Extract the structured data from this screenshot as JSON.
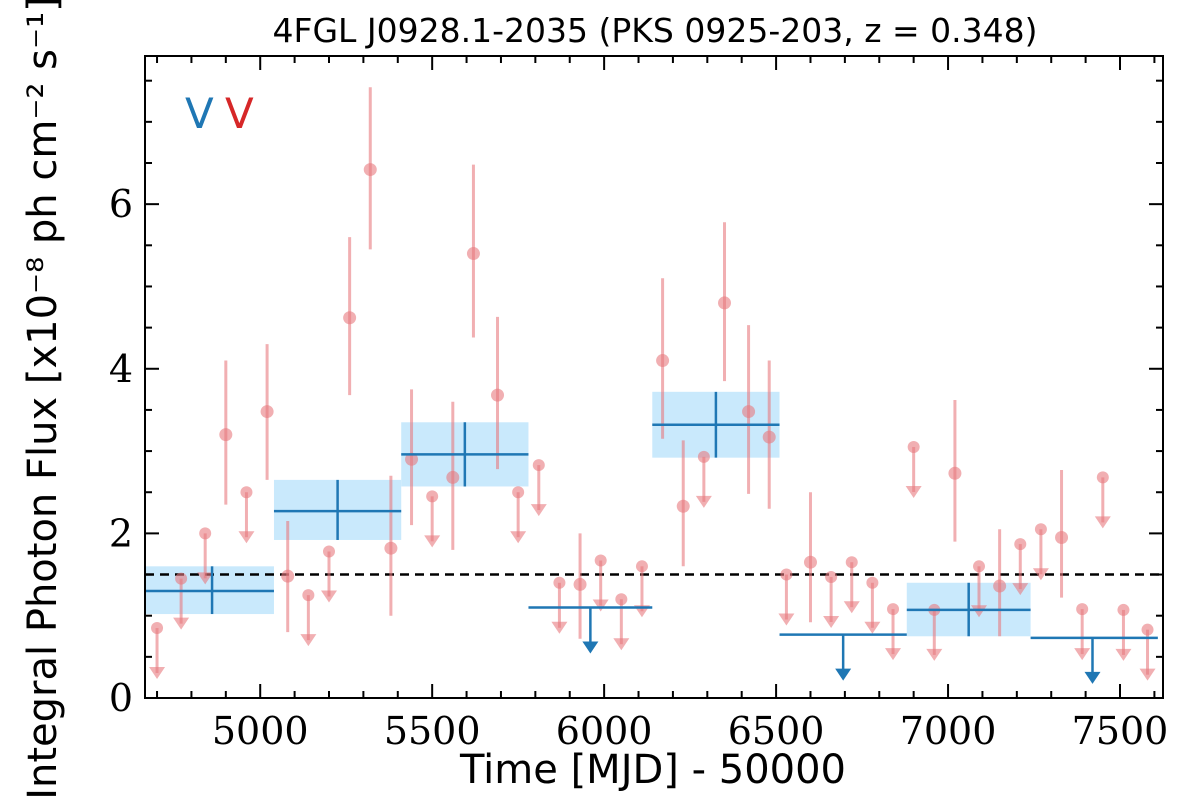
{
  "chart_data": {
    "type": "scatter",
    "title": "4FGL J0928.1-2035 (PKS 0925-203, z = 0.348)",
    "xlabel": "Time [MJD] - 50000",
    "ylabel": "Integral Photon Flux [x10⁻⁸ ph cm⁻² s⁻¹]",
    "xlim": [
      4665,
      7625
    ],
    "ylim": [
      0,
      7.8
    ],
    "xticks": [
      5000,
      5500,
      6000,
      6500,
      7000,
      7500
    ],
    "xtick_labels": [
      "5000",
      "5500",
      "6000",
      "6500",
      "7000",
      "7500"
    ],
    "yticks": [
      0,
      2,
      4,
      6
    ],
    "ytick_labels": [
      "0",
      "2",
      "4",
      "6"
    ],
    "grid": false,
    "legend": {
      "placement": "top-left",
      "entries": [
        {
          "label": "V",
          "color": "#1f77b4"
        },
        {
          "label": "V",
          "color": "#d62728"
        }
      ]
    },
    "reference_line": {
      "y": 1.5,
      "style": "dashed",
      "color": "#000000"
    },
    "colors": {
      "monthly": "#e8797f",
      "binned": "#1f77b4",
      "band": "#c9e9fc"
    },
    "series": [
      {
        "binning": "monthly",
        "detections": [
          {
            "x": 4900,
            "y": 3.2,
            "ylo": 2.35,
            "yhi": 4.1
          },
          {
            "x": 5020,
            "y": 3.48,
            "ylo": 2.65,
            "yhi": 4.3
          },
          {
            "x": 5080,
            "y": 1.48,
            "ylo": 0.8,
            "yhi": 2.15
          },
          {
            "x": 5260,
            "y": 4.62,
            "ylo": 3.68,
            "yhi": 5.6
          },
          {
            "x": 5320,
            "y": 6.42,
            "ylo": 5.45,
            "yhi": 7.42
          },
          {
            "x": 5380,
            "y": 1.82,
            "ylo": 1.0,
            "yhi": 2.7
          },
          {
            "x": 5440,
            "y": 2.9,
            "ylo": 2.1,
            "yhi": 3.75
          },
          {
            "x": 5560,
            "y": 2.68,
            "ylo": 1.8,
            "yhi": 3.6
          },
          {
            "x": 5620,
            "y": 5.4,
            "ylo": 4.38,
            "yhi": 6.48
          },
          {
            "x": 5690,
            "y": 3.68,
            "ylo": 2.78,
            "yhi": 4.63
          },
          {
            "x": 5930,
            "y": 1.38,
            "ylo": 0.72,
            "yhi": 2.0
          },
          {
            "x": 6170,
            "y": 4.1,
            "ylo": 3.15,
            "yhi": 5.1
          },
          {
            "x": 6230,
            "y": 2.33,
            "ylo": 1.6,
            "yhi": 3.13
          },
          {
            "x": 6350,
            "y": 4.8,
            "ylo": 3.85,
            "yhi": 5.78
          },
          {
            "x": 6420,
            "y": 3.48,
            "ylo": 2.48,
            "yhi": 4.53
          },
          {
            "x": 6480,
            "y": 3.17,
            "ylo": 2.3,
            "yhi": 4.1
          },
          {
            "x": 6600,
            "y": 1.65,
            "ylo": 0.92,
            "yhi": 2.5
          },
          {
            "x": 7020,
            "y": 2.73,
            "ylo": 1.9,
            "yhi": 3.62
          },
          {
            "x": 7150,
            "y": 1.36,
            "ylo": 0.75,
            "yhi": 2.05
          },
          {
            "x": 7330,
            "y": 1.95,
            "ylo": 1.22,
            "yhi": 2.77
          }
        ],
        "upper_limits": [
          4700,
          4770,
          4840,
          4960,
          5140,
          5200,
          5500,
          5750,
          5810,
          5870,
          5990,
          6050,
          6110,
          6290,
          6530,
          6660,
          6720,
          6780,
          6840,
          6900,
          6960,
          7090,
          7210,
          7270,
          7390,
          7450,
          7510,
          7580
        ],
        "upper_limit_values": [
          0.85,
          1.45,
          2.0,
          2.5,
          1.25,
          1.78,
          2.45,
          2.5,
          2.83,
          1.4,
          1.67,
          1.2,
          1.6,
          2.93,
          1.5,
          1.47,
          1.65,
          1.4,
          1.08,
          3.05,
          1.07,
          1.6,
          1.87,
          2.05,
          1.08,
          2.68,
          1.07,
          0.83
        ]
      },
      {
        "binning": "binned",
        "points": [
          {
            "x": 4860,
            "xlo": 4665,
            "xhi": 5040,
            "y": 1.3,
            "ylo": 1.02,
            "yhi": 1.6,
            "band": [
              1.02,
              1.6
            ]
          },
          {
            "x": 5225,
            "xlo": 5040,
            "xhi": 5410,
            "y": 2.27,
            "ylo": 1.92,
            "yhi": 2.65,
            "band": [
              1.92,
              2.65
            ]
          },
          {
            "x": 5595,
            "xlo": 5410,
            "xhi": 5780,
            "y": 2.96,
            "ylo": 2.57,
            "yhi": 3.35,
            "band": [
              2.57,
              3.35
            ]
          },
          {
            "x": 6325,
            "xlo": 6140,
            "xhi": 6510,
            "y": 3.32,
            "ylo": 2.92,
            "yhi": 3.72,
            "band": [
              2.92,
              3.72
            ]
          },
          {
            "x": 7060,
            "xlo": 6880,
            "xhi": 7240,
            "y": 1.07,
            "ylo": 0.75,
            "yhi": 1.4,
            "band": [
              0.75,
              1.4
            ]
          }
        ],
        "upper_limits": [
          {
            "x": 5960,
            "xlo": 5780,
            "xhi": 6140,
            "y": 1.1
          },
          {
            "x": 6695,
            "xlo": 6510,
            "xhi": 6880,
            "y": 0.77
          },
          {
            "x": 7420,
            "xlo": 7240,
            "xhi": 7610,
            "y": 0.73
          }
        ]
      }
    ]
  }
}
